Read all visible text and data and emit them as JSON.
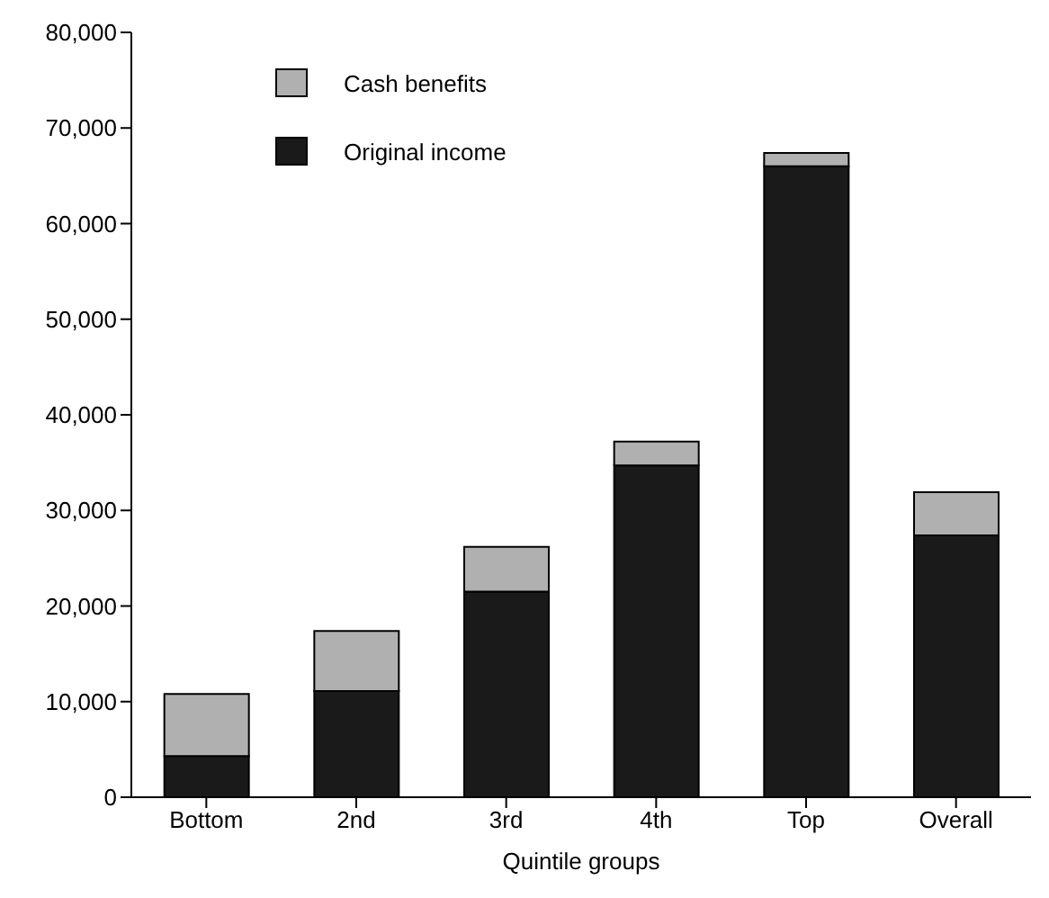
{
  "chart_data": {
    "type": "bar",
    "xlabel": "Quintile groups",
    "categories": [
      "Bottom",
      "2nd",
      "3rd",
      "4th",
      "Top",
      "Overall"
    ],
    "stacked": true,
    "series": [
      {
        "name": "Original income",
        "color": "#1a1a1a",
        "values": [
          4300,
          11100,
          21500,
          34700,
          66000,
          27400
        ]
      },
      {
        "name": "Cash benefits",
        "color": "#b0b0b0",
        "values": [
          6500,
          6300,
          4700,
          2500,
          1400,
          4500
        ]
      }
    ],
    "ylim": [
      0,
      80000
    ],
    "yticks": [
      0,
      {
        "value": 10000,
        "label": "10,000"
      },
      {
        "value": 20000,
        "label": "20,000"
      },
      {
        "value": 30000,
        "label": "30,000"
      },
      {
        "value": 40000,
        "label": "40,000"
      },
      {
        "value": 50000,
        "label": "50,000"
      },
      {
        "value": 60000,
        "label": "60,000"
      },
      {
        "value": 70000,
        "label": "70,000"
      },
      {
        "value": 80000,
        "label": "80,000"
      }
    ],
    "grid": false,
    "legend": "top left"
  }
}
